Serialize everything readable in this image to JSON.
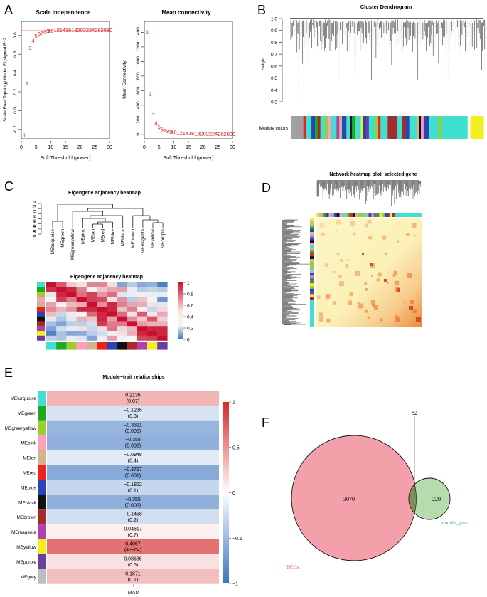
{
  "panels": {
    "A": {
      "letter": "A",
      "scale": {
        "title": "Scale independence",
        "xlabel": "Soft Threshold (power)",
        "ylabel": "Scale Free Topology Model Fit,signed R^2",
        "xticks": [
          "0",
          "5",
          "10",
          "15",
          "20",
          "25",
          "30"
        ],
        "yticks": [
          "-0.2",
          "0.0",
          "0.2",
          "0.4",
          "0.6",
          "0.8"
        ],
        "labels": [
          "1",
          "2",
          "3",
          "4",
          "5",
          "6",
          "7",
          "8",
          "9",
          "10",
          "12",
          "14",
          "16",
          "18",
          "20",
          "22",
          "24",
          "26",
          "28",
          "30"
        ]
      },
      "conn": {
        "title": "Mean connectivity",
        "xlabel": "Soft Threshold (power)",
        "ylabel": "Mean Connectivity",
        "xticks": [
          "0",
          "5",
          "10",
          "15",
          "20",
          "25",
          "30"
        ],
        "yticks": [
          "0",
          "200",
          "400",
          "600",
          "800",
          "1000",
          "1200",
          "1400"
        ],
        "labels": [
          "1",
          "2",
          "3",
          "4",
          "5",
          "6",
          "7",
          "8",
          "9",
          "10",
          "12",
          "14",
          "16",
          "18",
          "20",
          "22",
          "24",
          "26",
          "28",
          "30"
        ]
      }
    },
    "B": {
      "letter": "B",
      "title": "Cluster Dendrogram",
      "ylabel": "Height",
      "yticks": [
        "0.3",
        "0.4",
        "0.5",
        "0.6",
        "0.7",
        "0.8",
        "0.9",
        "1.0"
      ],
      "bar_label": "Module colors"
    },
    "C": {
      "letter": "C",
      "tree_title": "Eigengene adjacency heatmap",
      "heat_title": "Eigengene adjacency heatmap",
      "yticks": [
        "0.2",
        "0.4",
        "0.6",
        "0.8",
        "1.0",
        "1.2",
        "1.4"
      ],
      "leaves": [
        "MEturquoise",
        "MEgreen",
        "MEgreenyellow",
        "MEpink",
        "MEtan",
        "MEred",
        "MEblue",
        "MEblack",
        "MEbrown",
        "MEmagenta",
        "MEyellow",
        "MEpurple"
      ],
      "legend_ticks": [
        "1",
        "0.8",
        "0.6",
        "0.4",
        "0.2",
        "0"
      ]
    },
    "D": {
      "letter": "D",
      "title": "Network heatmap plot, selected gene"
    },
    "E": {
      "letter": "E",
      "title": "Module−trait relationships",
      "xlabel": "MAM",
      "legend_ticks": [
        "1",
        "0.5",
        "0",
        "−0.5",
        "−1"
      ]
    },
    "F": {
      "letter": "F",
      "overlap_count": "82",
      "left_count": "3070",
      "right_count": "220",
      "left_label": "DEGs",
      "right_label": "module_gene"
    }
  },
  "chart_data": [
    {
      "type": "scatter",
      "panel": "A-left",
      "title": "Scale independence",
      "xlabel": "Soft Threshold (power)",
      "ylabel": "Scale Free Topology Model Fit,signed R^2",
      "x": [
        1,
        2,
        3,
        4,
        5,
        6,
        7,
        8,
        9,
        10,
        12,
        14,
        16,
        18,
        20,
        22,
        24,
        26,
        28,
        30
      ],
      "y": [
        -0.26,
        0.29,
        0.67,
        0.75,
        0.8,
        0.82,
        0.83,
        0.84,
        0.85,
        0.85,
        0.86,
        0.86,
        0.86,
        0.86,
        0.86,
        0.86,
        0.86,
        0.86,
        0.86,
        0.86
      ],
      "hline": 0.85,
      "xlim": [
        0,
        30
      ],
      "ylim": [
        -0.3,
        0.95
      ]
    },
    {
      "type": "scatter",
      "panel": "A-right",
      "title": "Mean connectivity",
      "xlabel": "Soft Threshold (power)",
      "ylabel": "Mean Connectivity",
      "x": [
        1,
        2,
        3,
        4,
        5,
        6,
        7,
        8,
        9,
        10,
        12,
        14,
        16,
        18,
        20,
        22,
        24,
        26,
        28,
        30
      ],
      "y": [
        1410,
        560,
        290,
        160,
        100,
        70,
        55,
        45,
        38,
        32,
        25,
        20,
        17,
        15,
        13,
        12,
        11,
        10,
        9,
        9
      ],
      "xlim": [
        0,
        30
      ],
      "ylim": [
        -60,
        1550
      ]
    },
    {
      "type": "heatmap",
      "panel": "E",
      "title": "Module−trait relationships",
      "xlabel": "MAM",
      "modules": [
        "MEturquoise",
        "MEgreen",
        "MEgreenyellow",
        "MEpink",
        "MEtan",
        "MEred",
        "MEblue",
        "MEblack",
        "MEbrown",
        "MEmagenta",
        "MEyellow",
        "MEpurple",
        "MEgrey"
      ],
      "module_colors": [
        "#40e0d0",
        "#22a81e",
        "#9acd32",
        "#ff9fc0",
        "#d2b48c",
        "#ee2020",
        "#2b44b5",
        "#111111",
        "#a52a2a",
        "#b03fb0",
        "#f0f020",
        "#6a3ea0",
        "#bdbdbd"
      ],
      "correlation": [
        "0.2136",
        "−0.1236",
        "−0.3321",
        "−0.355",
        "−0.0948",
        "−0.3797",
        "−0.1822",
        "−0.355",
        "−0.1458",
        "0.04617",
        "0.4067",
        "0.08636",
        "0.1871"
      ],
      "pvalue": [
        "(0.07)",
        "(0.3)",
        "(0.005)",
        "(0.002)",
        "(0.4)",
        "(0.001)",
        "(0.1)",
        "(0.002)",
        "(0.2)",
        "(0.7)",
        "(4e−04)",
        "(0.5)",
        "(0.1)"
      ],
      "values": [
        0.2136,
        -0.1236,
        -0.3321,
        -0.355,
        -0.0948,
        -0.3797,
        -0.1822,
        -0.355,
        -0.1458,
        0.04617,
        0.4067,
        0.08636,
        0.1871
      ],
      "zlim": [
        -1,
        1
      ]
    }
  ],
  "colors": {
    "red_text": "#e01010",
    "venn_left_fill": "#f4a0ab",
    "venn_right_fill": "#b6dcae",
    "venn_right_label": "#4caf50",
    "venn_left_label": "#e8506a",
    "overlap_fill": "#7f8f5c"
  }
}
